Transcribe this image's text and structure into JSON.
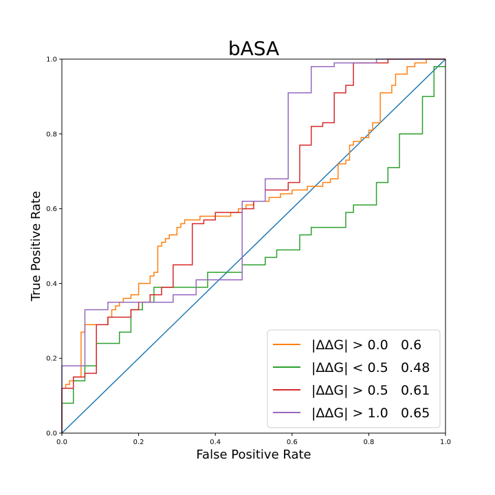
{
  "chart_data": {
    "type": "line",
    "title": "bASA",
    "xlabel": "False Positive Rate",
    "ylabel": "True Positive Rate",
    "xlim": [
      0,
      1
    ],
    "ylim": [
      0,
      1
    ],
    "xticks": [
      "0.0",
      "0.2",
      "0.4",
      "0.6",
      "0.8",
      "1.0"
    ],
    "yticks": [
      "0.0",
      "0.2",
      "0.4",
      "0.6",
      "0.8",
      "1.0"
    ],
    "grid": false,
    "legend_position": "lower-right",
    "diagonal": {
      "color": "#1f77b4",
      "x": [
        0,
        1
      ],
      "y": [
        0,
        1
      ]
    },
    "series": [
      {
        "name": "|ΔΔG| > 0.0",
        "auc": "0.6",
        "color": "#ff7f0e",
        "x": [
          0.0,
          0.0,
          0.01,
          0.01,
          0.02,
          0.02,
          0.03,
          0.03,
          0.05,
          0.05,
          0.06,
          0.06,
          0.07,
          0.07,
          0.09,
          0.09,
          0.12,
          0.12,
          0.13,
          0.13,
          0.14,
          0.14,
          0.15,
          0.15,
          0.16,
          0.16,
          0.18,
          0.18,
          0.2,
          0.2,
          0.23,
          0.23,
          0.24,
          0.24,
          0.25,
          0.25,
          0.26,
          0.26,
          0.27,
          0.27,
          0.28,
          0.28,
          0.3,
          0.3,
          0.31,
          0.31,
          0.32,
          0.32,
          0.34,
          0.34,
          0.36,
          0.36,
          0.4,
          0.4,
          0.42,
          0.42,
          0.44,
          0.44,
          0.46,
          0.46,
          0.48,
          0.48,
          0.5,
          0.5,
          0.52,
          0.52,
          0.54,
          0.54,
          0.57,
          0.57,
          0.6,
          0.6,
          0.62,
          0.62,
          0.64,
          0.64,
          0.68,
          0.68,
          0.7,
          0.7,
          0.72,
          0.72,
          0.74,
          0.74,
          0.75,
          0.75,
          0.76,
          0.76,
          0.78,
          0.78,
          0.8,
          0.8,
          0.81,
          0.81,
          0.83,
          0.83,
          0.84,
          0.84,
          0.86,
          0.86,
          0.87,
          0.87,
          0.9,
          0.9,
          0.92,
          0.92,
          0.95,
          0.95,
          0.96,
          1.0
        ],
        "y": [
          0.0,
          0.12,
          0.12,
          0.13,
          0.13,
          0.14,
          0.14,
          0.15,
          0.15,
          0.27,
          0.27,
          0.29,
          0.29,
          0.29,
          0.29,
          0.29,
          0.29,
          0.31,
          0.31,
          0.33,
          0.33,
          0.34,
          0.34,
          0.35,
          0.35,
          0.36,
          0.36,
          0.37,
          0.37,
          0.4,
          0.4,
          0.42,
          0.42,
          0.43,
          0.43,
          0.5,
          0.5,
          0.51,
          0.51,
          0.52,
          0.52,
          0.53,
          0.53,
          0.55,
          0.55,
          0.56,
          0.56,
          0.57,
          0.57,
          0.57,
          0.57,
          0.58,
          0.58,
          0.58,
          0.58,
          0.58,
          0.58,
          0.59,
          0.59,
          0.6,
          0.6,
          0.61,
          0.61,
          0.62,
          0.62,
          0.62,
          0.62,
          0.63,
          0.63,
          0.64,
          0.64,
          0.65,
          0.65,
          0.65,
          0.65,
          0.66,
          0.66,
          0.67,
          0.67,
          0.68,
          0.68,
          0.72,
          0.72,
          0.73,
          0.73,
          0.77,
          0.77,
          0.78,
          0.78,
          0.79,
          0.79,
          0.81,
          0.81,
          0.83,
          0.83,
          0.91,
          0.91,
          0.91,
          0.91,
          0.93,
          0.93,
          0.96,
          0.96,
          0.98,
          0.98,
          0.99,
          0.99,
          1.0,
          1.0,
          1.0
        ]
      },
      {
        "name": "|ΔΔG| < 0.5",
        "auc": "0.48",
        "color": "#2ca02c",
        "x": [
          0.0,
          0.0,
          0.03,
          0.03,
          0.06,
          0.06,
          0.09,
          0.09,
          0.15,
          0.15,
          0.18,
          0.18,
          0.21,
          0.21,
          0.24,
          0.24,
          0.38,
          0.38,
          0.47,
          0.47,
          0.53,
          0.53,
          0.56,
          0.56,
          0.62,
          0.62,
          0.65,
          0.65,
          0.74,
          0.74,
          0.76,
          0.76,
          0.82,
          0.82,
          0.85,
          0.85,
          0.88,
          0.88,
          0.94,
          0.94,
          0.97,
          0.97,
          1.0
        ],
        "y": [
          0.0,
          0.08,
          0.08,
          0.14,
          0.14,
          0.18,
          0.18,
          0.24,
          0.24,
          0.27,
          0.27,
          0.33,
          0.33,
          0.35,
          0.35,
          0.39,
          0.39,
          0.43,
          0.43,
          0.45,
          0.45,
          0.47,
          0.47,
          0.49,
          0.49,
          0.53,
          0.53,
          0.55,
          0.55,
          0.59,
          0.59,
          0.61,
          0.61,
          0.67,
          0.67,
          0.71,
          0.71,
          0.8,
          0.8,
          0.9,
          0.9,
          0.98,
          0.98
        ]
      },
      {
        "name": "|ΔΔG| > 0.5",
        "auc": "0.61",
        "color": "#d62728",
        "x": [
          0.0,
          0.0,
          0.03,
          0.03,
          0.06,
          0.06,
          0.09,
          0.09,
          0.12,
          0.12,
          0.18,
          0.18,
          0.2,
          0.2,
          0.23,
          0.23,
          0.26,
          0.26,
          0.29,
          0.29,
          0.34,
          0.34,
          0.37,
          0.37,
          0.4,
          0.4,
          0.47,
          0.47,
          0.5,
          0.5,
          0.53,
          0.53,
          0.56,
          0.56,
          0.59,
          0.59,
          0.62,
          0.62,
          0.65,
          0.65,
          0.68,
          0.68,
          0.71,
          0.71,
          0.74,
          0.74,
          0.76,
          0.76,
          0.79,
          0.79,
          0.82,
          0.82,
          0.85,
          0.85,
          0.91,
          0.91,
          0.94,
          0.94,
          1.0
        ],
        "y": [
          0.0,
          0.12,
          0.12,
          0.15,
          0.15,
          0.16,
          0.16,
          0.29,
          0.29,
          0.31,
          0.31,
          0.33,
          0.33,
          0.35,
          0.35,
          0.37,
          0.37,
          0.39,
          0.39,
          0.45,
          0.45,
          0.56,
          0.56,
          0.57,
          0.57,
          0.59,
          0.59,
          0.6,
          0.6,
          0.62,
          0.62,
          0.65,
          0.65,
          0.65,
          0.65,
          0.67,
          0.67,
          0.77,
          0.77,
          0.82,
          0.82,
          0.83,
          0.83,
          0.91,
          0.91,
          0.93,
          0.93,
          0.99,
          0.99,
          0.99,
          0.99,
          0.99,
          0.99,
          1.0,
          1.0,
          1.0,
          1.0,
          1.0,
          1.0
        ]
      },
      {
        "name": "|ΔΔG| > 1.0",
        "auc": "0.65",
        "color": "#9467bd",
        "x": [
          0.0,
          0.0,
          0.06,
          0.06,
          0.12,
          0.12,
          0.24,
          0.24,
          0.29,
          0.29,
          0.35,
          0.35,
          0.41,
          0.41,
          0.47,
          0.47,
          0.53,
          0.53,
          0.59,
          0.59,
          0.65,
          0.65,
          0.71,
          0.71,
          0.82,
          0.82,
          1.0
        ],
        "y": [
          0.0,
          0.18,
          0.18,
          0.33,
          0.33,
          0.35,
          0.35,
          0.35,
          0.35,
          0.37,
          0.37,
          0.41,
          0.41,
          0.41,
          0.41,
          0.62,
          0.62,
          0.68,
          0.68,
          0.91,
          0.91,
          0.98,
          0.98,
          0.99,
          0.99,
          1.0,
          1.0
        ]
      }
    ]
  }
}
